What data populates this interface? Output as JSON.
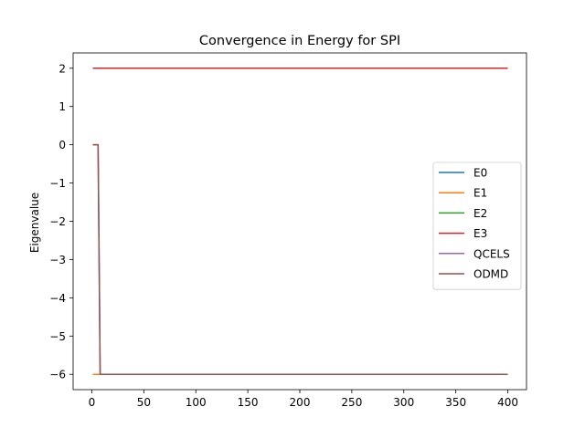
{
  "chart_data": {
    "type": "line",
    "title": "Convergence in Energy for SPI",
    "xlabel": "",
    "ylabel": "Eigenvalue",
    "xlim": [
      -18,
      418
    ],
    "ylim": [
      -6.4,
      2.4
    ],
    "xticks": [
      0,
      50,
      100,
      150,
      200,
      250,
      300,
      350,
      400
    ],
    "yticks": [
      -6,
      -5,
      -4,
      -3,
      -2,
      -1,
      0,
      1,
      2
    ],
    "grid": false,
    "legend_position": "center-right",
    "series": [
      {
        "name": "E0",
        "color": "#1f77b4",
        "x": [
          1,
          400
        ],
        "y": [
          -6,
          -6
        ]
      },
      {
        "name": "E1",
        "color": "#ff7f0e",
        "x": [
          1,
          400
        ],
        "y": [
          -6,
          -6
        ]
      },
      {
        "name": "E2",
        "color": "#2ca02c",
        "x": [
          1,
          400
        ],
        "y": [
          2,
          2
        ]
      },
      {
        "name": "E3",
        "color": "#d62728",
        "x": [
          1,
          400
        ],
        "y": [
          2,
          2
        ]
      },
      {
        "name": "QCELS",
        "color": "#9467bd",
        "x": [
          1,
          6,
          8,
          400
        ],
        "y": [
          0,
          0,
          -6,
          -6
        ]
      },
      {
        "name": "ODMD",
        "color": "#8c564b",
        "x": [
          1,
          6,
          8,
          400
        ],
        "y": [
          0,
          0,
          -6,
          -6
        ]
      }
    ]
  }
}
